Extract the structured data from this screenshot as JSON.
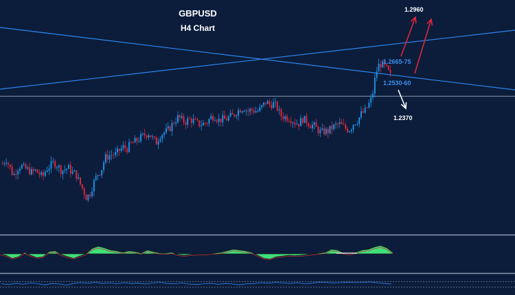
{
  "chart_data": {
    "type": "candlestick",
    "title": "GBPUSD",
    "subtitle": "H4 Chart",
    "timeframe": "H4",
    "axis_labels_visible": false,
    "grid": false,
    "colors": {
      "background": "#0b1d3b",
      "bull_candle": "#1f8fe0",
      "bear_candle": "#e0253a",
      "trendline": "#2f86f0",
      "horizontal_level": "#8b9bb1",
      "oscillator_fill": "#3ee07a",
      "bullish_arrow": "#e0253a",
      "bearish_arrow": "#ffffff",
      "label_blue": "#3d8ef0",
      "label_white": "#ffffff"
    },
    "price_range": [
      1.22,
      1.3
    ],
    "price_path": [
      1.2438,
      1.2455,
      1.2427,
      1.2397,
      1.2421,
      1.2433,
      1.2422,
      1.2418,
      1.2409,
      1.2415,
      1.2405,
      1.2392,
      1.242,
      1.243,
      1.2443,
      1.2433,
      1.2416,
      1.2418,
      1.2425,
      1.2408,
      1.2406,
      1.2375,
      1.2351,
      1.2321,
      1.2339,
      1.2375,
      1.2403,
      1.2415,
      1.2458,
      1.2465,
      1.2471,
      1.247,
      1.2485,
      1.2495,
      1.249,
      1.2505,
      1.2512,
      1.2521,
      1.253,
      1.2538,
      1.2543,
      1.2525,
      1.251,
      1.2535,
      1.2545,
      1.255,
      1.2565,
      1.2585,
      1.2598,
      1.2589,
      1.2582,
      1.259,
      1.2587,
      1.2578,
      1.2573,
      1.2576,
      1.2582,
      1.2598,
      1.2602,
      1.2588,
      1.2591,
      1.259,
      1.2599,
      1.2603,
      1.2617,
      1.2626,
      1.263,
      1.2618,
      1.2623,
      1.262,
      1.2619,
      1.2635,
      1.2651,
      1.2641,
      1.2644,
      1.2632,
      1.2603,
      1.26,
      1.2596,
      1.2591,
      1.2579,
      1.2577,
      1.2592,
      1.2586,
      1.2572,
      1.257,
      1.2557,
      1.2545,
      1.255,
      1.255,
      1.2562,
      1.2569,
      1.2576,
      1.2566,
      1.2557,
      1.2557,
      1.2579,
      1.2586,
      1.2609,
      1.2618,
      1.264,
      1.2666,
      1.2748,
      1.2782,
      1.2776,
      1.2762,
      1.274
    ],
    "series": [
      {
        "type": "oscillator",
        "values": [
          0.0,
          -0.1,
          -0.3,
          -0.2,
          0.1,
          -0.1,
          -0.25,
          -0.2,
          0.15,
          0.2,
          -0.05,
          -0.18,
          -0.3,
          -0.15,
          0.0,
          0.35,
          0.5,
          0.4,
          0.25,
          0.2,
          0.1,
          0.2,
          0.15,
          0.05,
          0.25,
          0.15,
          0.05,
          0.05,
          0.1,
          -0.05,
          -0.1,
          -0.05,
          -0.02,
          0.0,
          0.02,
          0.05,
          0.1,
          0.2,
          0.3,
          0.25,
          0.2,
          0.1,
          -0.1,
          -0.3,
          -0.35,
          -0.2,
          -0.15,
          -0.1,
          -0.12,
          -0.1,
          -0.05,
          0.0,
          0.05,
          0.1,
          0.3,
          0.25,
          0.05,
          0.0,
          0.1,
          0.25,
          0.3,
          0.45,
          0.55,
          0.4,
          0.1
        ]
      },
      {
        "type": "momentum",
        "values": [
          0.1,
          -0.2,
          0.3,
          -0.1,
          0.4,
          0.1,
          -0.3,
          0.2,
          0.0,
          -0.4,
          0.2,
          0.5,
          0.3,
          0.6,
          0.2,
          0.4,
          0.1,
          0.5,
          0.2,
          0.3,
          0.0,
          0.4,
          0.6,
          0.2,
          0.1,
          0.4,
          0.0,
          -0.2,
          0.1,
          0.3,
          -0.1,
          0.2,
          0.0,
          -0.3,
          0.1,
          0.2,
          0.5,
          0.3,
          0.6,
          0.4,
          0.2,
          0.5,
          0.1,
          0.3,
          0.7,
          0.6,
          0.4,
          0.5,
          0.7,
          0.5,
          0.6,
          0.8,
          0.5,
          0.2,
          0.0
        ]
      }
    ],
    "annotations": {
      "target_up": "1.2960",
      "level_a": "1.2665-75",
      "level_b": "1.2530-60",
      "target_down": "1.2370"
    }
  }
}
